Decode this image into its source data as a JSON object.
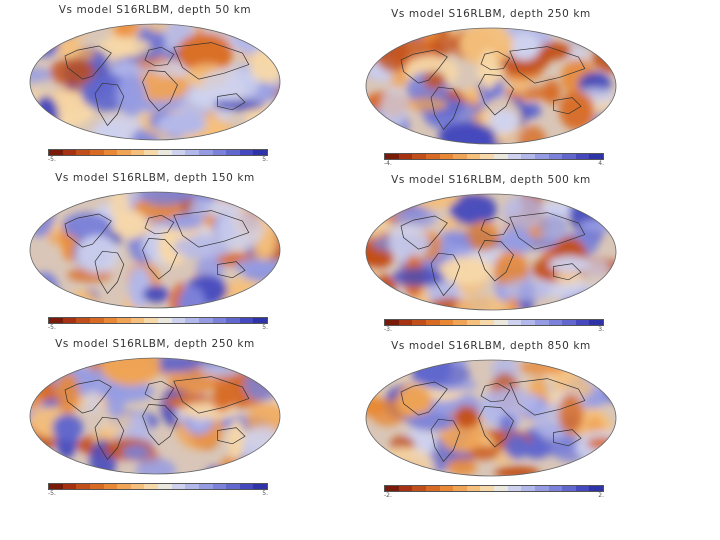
{
  "colors": {
    "slow": "#b33a12",
    "neutral": "#e9e6dc",
    "fast": "#2e35b0",
    "coastline": "#333333"
  },
  "colorbar_palette": [
    "#7a1a08",
    "#a63211",
    "#c24f19",
    "#d86a23",
    "#e88834",
    "#f0a455",
    "#f5c07c",
    "#f7d8a8",
    "#eae7dd",
    "#cfd2ee",
    "#b3b8ea",
    "#969ce3",
    "#7c82d9",
    "#6167cd",
    "#4549bd",
    "#2e33a8"
  ],
  "panels": [
    {
      "title": "Vs model S16RLBM, depth 50 km",
      "cb_min": "-5.",
      "cb_max": "5.",
      "seed": 11
    },
    {
      "title": "Vs model S16RLBM, depth 250 km",
      "cb_min": "-4.",
      "cb_max": "4.",
      "seed": 23
    },
    {
      "title": "Vs model S16RLBM, depth 150 km",
      "cb_min": "-5.",
      "cb_max": "5.",
      "seed": 37
    },
    {
      "title": "Vs model S16RLBM, depth 500 km",
      "cb_min": "-3.",
      "cb_max": "3.",
      "seed": 51
    },
    {
      "title": "Vs model S16RLBM, depth 250 km",
      "cb_min": "-5.",
      "cb_max": "5.",
      "seed": 67
    },
    {
      "title": "Vs model S16RLBM, depth 850 km",
      "cb_min": "-2.",
      "cb_max": "2.",
      "seed": 83
    }
  ]
}
